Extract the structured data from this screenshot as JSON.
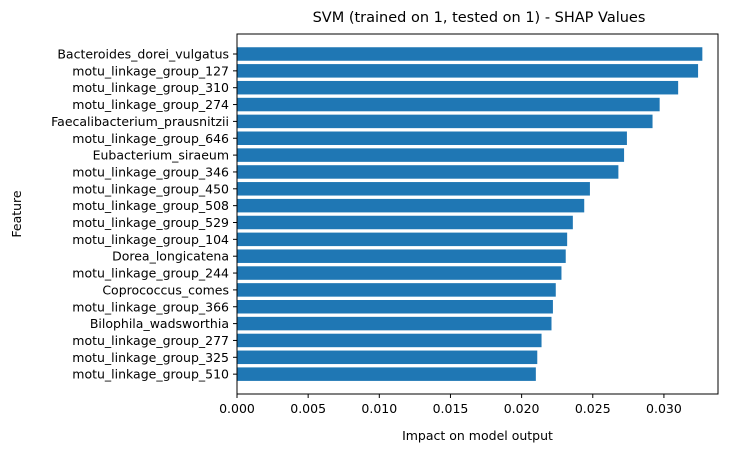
{
  "chart_data": {
    "type": "bar",
    "orientation": "horizontal",
    "title": "SVM (trained on 1, tested on 1) -  SHAP Values",
    "xlabel": "Impact on model output",
    "ylabel": "Feature",
    "xlim": [
      0,
      0.0338
    ],
    "xticks": [
      "0.000",
      "0.005",
      "0.010",
      "0.015",
      "0.020",
      "0.025",
      "0.030"
    ],
    "xtick_values": [
      0,
      0.005,
      0.01,
      0.015,
      0.02,
      0.025,
      0.03
    ],
    "bar_color": "#1f77b4",
    "grid": false,
    "categories": [
      "Bacteroides_dorei_vulgatus",
      "motu_linkage_group_127",
      "motu_linkage_group_310",
      "motu_linkage_group_274",
      "Faecalibacterium_prausnitzii",
      "motu_linkage_group_646",
      "Eubacterium_siraeum",
      "motu_linkage_group_346",
      "motu_linkage_group_450",
      "motu_linkage_group_508",
      "motu_linkage_group_529",
      "motu_linkage_group_104",
      "Dorea_longicatena",
      "motu_linkage_group_244",
      "Coprococcus_comes",
      "motu_linkage_group_366",
      "Bilophila_wadsworthia",
      "motu_linkage_group_277",
      "motu_linkage_group_325",
      "motu_linkage_group_510"
    ],
    "values": [
      0.0327,
      0.0324,
      0.031,
      0.0297,
      0.0292,
      0.0274,
      0.0272,
      0.0268,
      0.0248,
      0.0244,
      0.0236,
      0.0232,
      0.0231,
      0.0228,
      0.0224,
      0.0222,
      0.0221,
      0.0214,
      0.0211,
      0.021
    ]
  }
}
